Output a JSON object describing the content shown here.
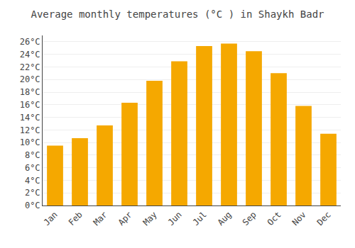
{
  "chart_data": {
    "type": "bar",
    "title": "Average monthly temperatures (°C ) in Shaykh Badr",
    "categories": [
      "Jan",
      "Feb",
      "Mar",
      "Apr",
      "May",
      "Jun",
      "Jul",
      "Aug",
      "Sep",
      "Oct",
      "Nov",
      "Dec"
    ],
    "values": [
      9.5,
      10.7,
      12.7,
      16.3,
      19.8,
      22.9,
      25.3,
      25.7,
      24.5,
      21.0,
      15.8,
      11.4
    ],
    "color": "#F5A800",
    "ylim": [
      0,
      27
    ],
    "yticks": [
      {
        "value": 0,
        "label": "0°C"
      },
      {
        "value": 2,
        "label": "2°C"
      },
      {
        "value": 4,
        "label": "4°C"
      },
      {
        "value": 6,
        "label": "6°C"
      },
      {
        "value": 8,
        "label": "8°C"
      },
      {
        "value": 10,
        "label": "10°C"
      },
      {
        "value": 12,
        "label": "12°C"
      },
      {
        "value": 14,
        "label": "14°C"
      },
      {
        "value": 16,
        "label": "16°C"
      },
      {
        "value": 18,
        "label": "18°C"
      },
      {
        "value": 20,
        "label": "20°C"
      },
      {
        "value": 22,
        "label": "22°C"
      },
      {
        "value": 24,
        "label": "24°C"
      },
      {
        "value": 26,
        "label": "26°C"
      }
    ],
    "grid": true
  }
}
